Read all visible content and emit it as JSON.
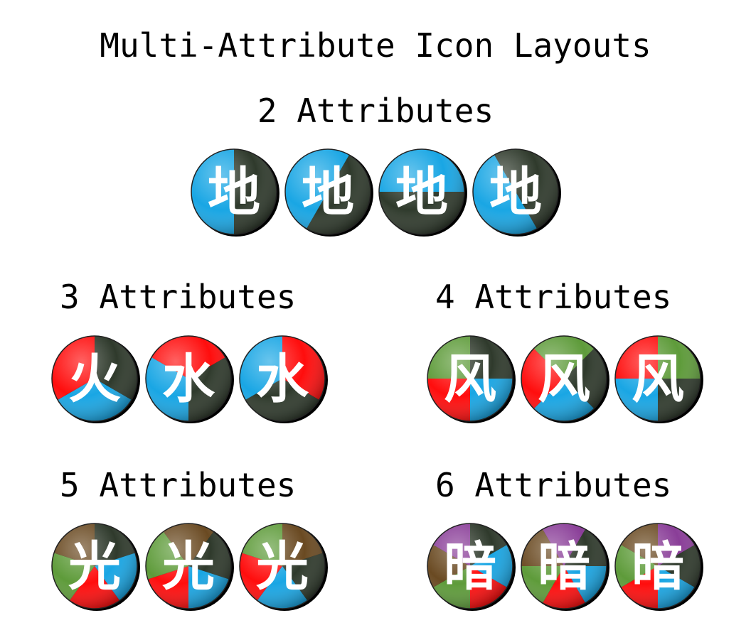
{
  "title": "Multi-Attribute Icon Layouts",
  "colors": {
    "dark": "#2f3a2c",
    "blue": "#19a6e4",
    "red": "#ff0d0d",
    "green": "#5e9b3a",
    "brown": "#6a4a22",
    "purple": "#8a3e98",
    "rim_yellow": "#f0e060"
  },
  "sections": [
    {
      "label": "2 Attributes",
      "icons": [
        {
          "glyph": "地",
          "slices": [
            "dark",
            "blue"
          ],
          "start_deg": 0
        },
        {
          "glyph": "地",
          "slices": [
            "dark",
            "blue"
          ],
          "start_deg": 30
        },
        {
          "glyph": "地",
          "slices": [
            "dark",
            "blue"
          ],
          "start_deg": 90
        },
        {
          "glyph": "地",
          "slices": [
            "dark",
            "blue"
          ],
          "start_deg": -30
        }
      ]
    },
    {
      "label": "3 Attributes",
      "icons": [
        {
          "glyph": "火",
          "slices": [
            "dark",
            "blue",
            "red"
          ],
          "start_deg": 0
        },
        {
          "glyph": "水",
          "slices": [
            "dark",
            "blue",
            "red"
          ],
          "start_deg": 60
        },
        {
          "glyph": "水",
          "slices": [
            "dark",
            "blue",
            "red"
          ],
          "start_deg": 120
        }
      ]
    },
    {
      "label": "4 Attributes",
      "icons": [
        {
          "glyph": "风",
          "slices": [
            "dark",
            "blue",
            "red",
            "green"
          ],
          "start_deg": 0
        },
        {
          "glyph": "风",
          "slices": [
            "dark",
            "blue",
            "red",
            "green"
          ],
          "start_deg": 45
        },
        {
          "glyph": "风",
          "slices": [
            "dark",
            "blue",
            "red",
            "green"
          ],
          "start_deg": 90
        }
      ]
    },
    {
      "label": "5 Attributes",
      "icons": [
        {
          "glyph": "光",
          "slices": [
            "dark",
            "blue",
            "red",
            "green",
            "brown"
          ],
          "start_deg": 0
        },
        {
          "glyph": "光",
          "slices": [
            "dark",
            "blue",
            "red",
            "green",
            "brown"
          ],
          "start_deg": 36
        },
        {
          "glyph": "光",
          "slices": [
            "dark",
            "blue",
            "red",
            "green",
            "brown"
          ],
          "start_deg": 72
        }
      ]
    },
    {
      "label": "6 Attributes",
      "icons": [
        {
          "glyph": "暗",
          "slices": [
            "dark",
            "blue",
            "red",
            "green",
            "brown",
            "purple"
          ],
          "start_deg": 0
        },
        {
          "glyph": "暗",
          "slices": [
            "dark",
            "blue",
            "red",
            "green",
            "brown",
            "purple"
          ],
          "start_deg": 30
        },
        {
          "glyph": "暗",
          "slices": [
            "dark",
            "blue",
            "red",
            "green",
            "brown",
            "purple"
          ],
          "start_deg": 60
        }
      ]
    }
  ]
}
